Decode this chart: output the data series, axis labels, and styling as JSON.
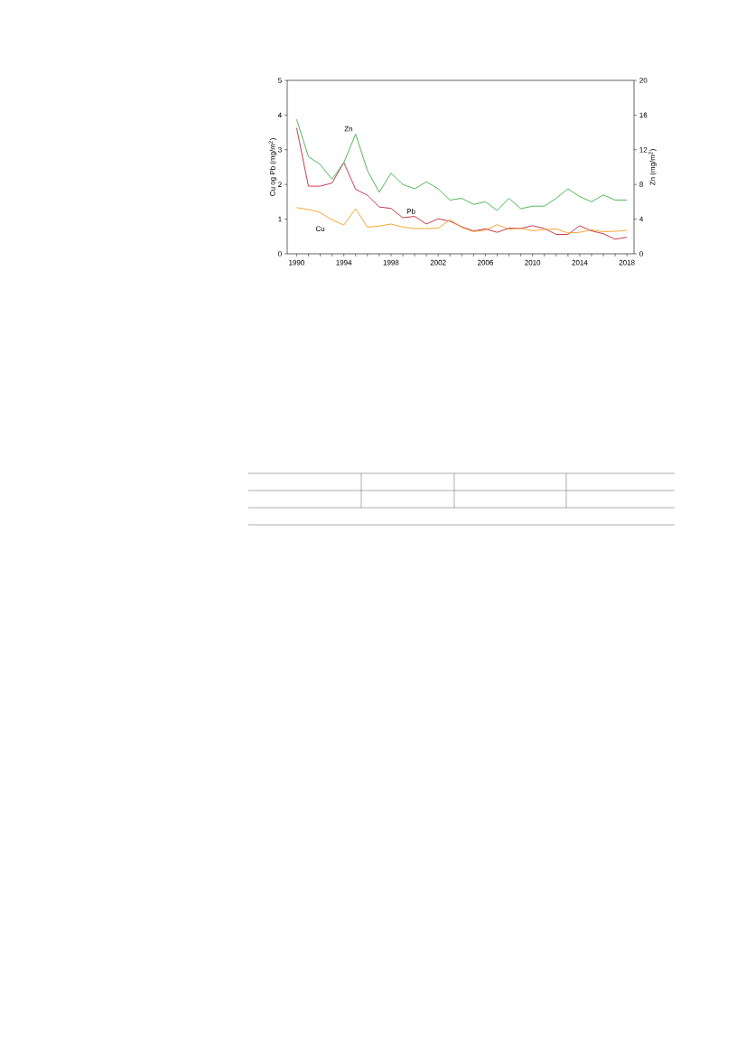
{
  "chart_data": {
    "type": "line",
    "ylabel": "Cu og Pb (mg/m$^{2}$)",
    "y2label": "Zn (mg/m$^{2}$)",
    "x": [
      1990,
      1991,
      1992,
      1993,
      1994,
      1995,
      1996,
      1997,
      1998,
      1999,
      2000,
      2001,
      2002,
      2003,
      2004,
      2005,
      2006,
      2007,
      2008,
      2009,
      2010,
      2011,
      2012,
      2013,
      2014,
      2015,
      2016,
      2017,
      2018
    ],
    "xlim": [
      1989.2,
      2018.6
    ],
    "xticks": [
      1990,
      {
        "value": 1991,
        "label": null
      },
      {
        "value": 1992,
        "label": null
      },
      {
        "value": 1993,
        "label": null
      },
      1994,
      {
        "value": 1995,
        "label": null
      },
      {
        "value": 1996,
        "label": null
      },
      {
        "value": 1997,
        "label": null
      },
      1998,
      {
        "value": 1999,
        "label": null
      },
      {
        "value": 2000,
        "label": null
      },
      {
        "value": 2001,
        "label": null
      },
      2002,
      {
        "value": 2003,
        "label": null
      },
      {
        "value": 2004,
        "label": null
      },
      {
        "value": 2005,
        "label": null
      },
      2006,
      {
        "value": 2007,
        "label": null
      },
      {
        "value": 2008,
        "label": null
      },
      {
        "value": 2009,
        "label": null
      },
      2010,
      {
        "value": 2011,
        "label": null
      },
      {
        "value": 2012,
        "label": null
      },
      {
        "value": 2013,
        "label": null
      },
      2014,
      {
        "value": 2015,
        "label": null
      },
      {
        "value": 2016,
        "label": null
      },
      {
        "value": 2017,
        "label": null
      },
      2018
    ],
    "ylim": [
      0,
      5
    ],
    "yticks": [
      0,
      1,
      2,
      3,
      4,
      5
    ],
    "y2lim": [
      0,
      20
    ],
    "y2ticks": [
      0,
      4,
      8,
      12,
      16,
      20
    ],
    "marker": "none",
    "line_style": "solid",
    "legend": false,
    "grid": false,
    "series": [
      {
        "name": "Zn",
        "color": "#3cb043",
        "axis": "y2",
        "values": [
          15.5,
          11.2,
          10.3,
          8.6,
          10.5,
          13.8,
          9.6,
          7.1,
          9.3,
          8.0,
          7.5,
          8.3,
          7.5,
          6.2,
          6.4,
          5.7,
          6.0,
          5.0,
          6.4,
          5.2,
          5.5,
          5.5,
          6.4,
          7.5,
          6.6,
          6.0,
          6.8,
          6.2,
          6.2
        ]
      },
      {
        "name": "Pb",
        "color": "#c0253a",
        "values": [
          3.63,
          1.95,
          1.95,
          2.04,
          2.63,
          1.86,
          1.69,
          1.35,
          1.31,
          1.04,
          1.08,
          0.86,
          1.01,
          0.94,
          0.78,
          0.66,
          0.72,
          0.62,
          0.74,
          0.73,
          0.81,
          0.73,
          0.56,
          0.56,
          0.81,
          0.66,
          0.58,
          0.42,
          0.48
        ]
      },
      {
        "name": "Cu",
        "color": "#f39c1f",
        "values": [
          1.33,
          1.28,
          1.19,
          0.98,
          0.83,
          1.3,
          0.77,
          0.8,
          0.86,
          0.77,
          0.73,
          0.73,
          0.74,
          0.98,
          0.76,
          0.64,
          0.68,
          0.84,
          0.71,
          0.74,
          0.66,
          0.7,
          0.72,
          0.6,
          0.62,
          0.69,
          0.64,
          0.65,
          0.68
        ]
      }
    ]
  }
}
